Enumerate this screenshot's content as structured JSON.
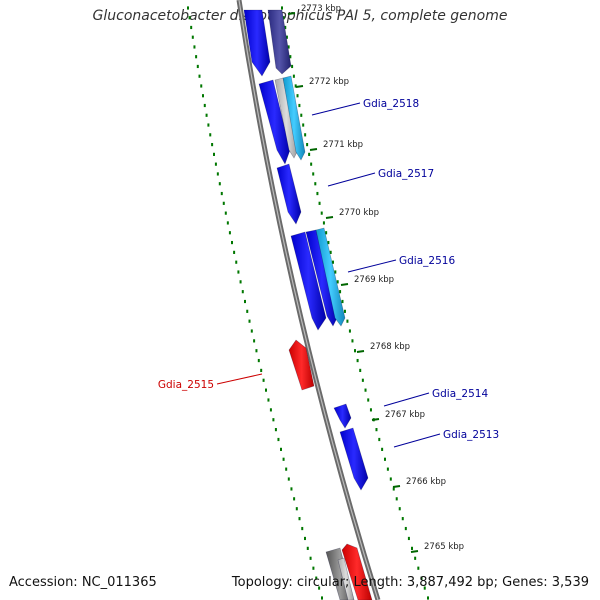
{
  "title": "Gluconacetobacter diazotrophicus PAI 5, complete genome",
  "footer": {
    "accession": "Accession: NC_011365",
    "summary": "Topology: circular; Length: 3,887,492 bp; Genes: 3,539"
  },
  "colors": {
    "forward_cds": "#0000ee",
    "reverse_cds": "#ee0000",
    "light_feature": "#33bbee",
    "gray_feature": "#888888",
    "backbone": "#777777",
    "tick_marks": "#006600",
    "label_forward": "#00009a",
    "label_reverse": "#cc0000"
  },
  "ticks": [
    {
      "label": "2773 kbp"
    },
    {
      "label": "2772 kbp"
    },
    {
      "label": "2771 kbp"
    },
    {
      "label": "2770 kbp"
    },
    {
      "label": "2769 kbp"
    },
    {
      "label": "2768 kbp"
    },
    {
      "label": "2767 kbp"
    },
    {
      "label": "2766 kbp"
    },
    {
      "label": "2765 kbp"
    }
  ],
  "genes": [
    {
      "name": "Gdia_2518",
      "strand": "forward"
    },
    {
      "name": "Gdia_2517",
      "strand": "forward"
    },
    {
      "name": "Gdia_2516",
      "strand": "forward"
    },
    {
      "name": "Gdia_2515",
      "strand": "reverse"
    },
    {
      "name": "Gdia_2514",
      "strand": "forward"
    },
    {
      "name": "Gdia_2513",
      "strand": "forward"
    }
  ]
}
